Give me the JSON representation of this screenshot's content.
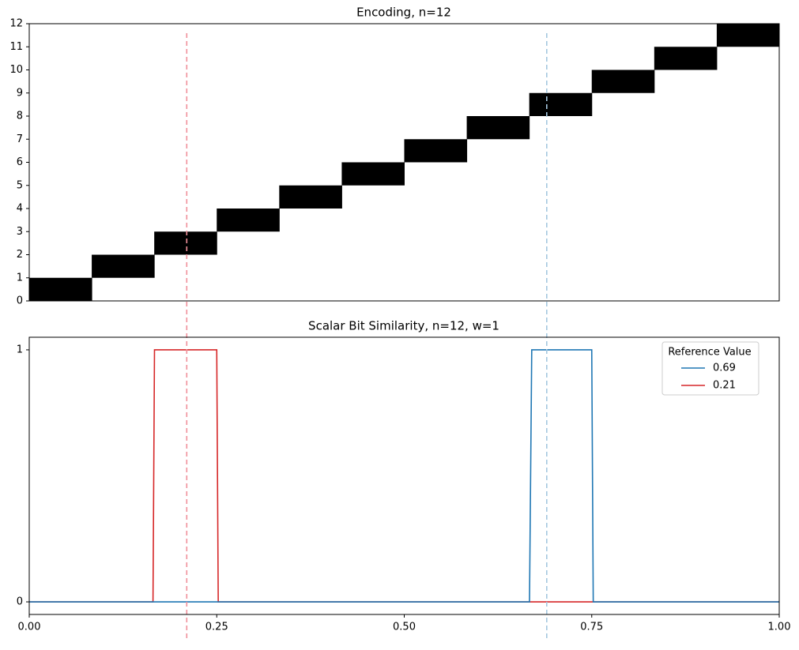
{
  "chart_data": [
    {
      "type": "heatmap",
      "title": "Encoding, n=12",
      "values": [
        0,
        1,
        2,
        3,
        4,
        5,
        6,
        7,
        8,
        9,
        10,
        11
      ],
      "color": "#000000",
      "xlim": [
        0,
        1
      ],
      "ylim": [
        0,
        12
      ],
      "yticks": [
        0,
        1,
        2,
        3,
        4,
        5,
        6,
        7,
        8,
        9,
        10,
        11,
        12
      ]
    },
    {
      "type": "line",
      "title": "Scalar Bit Similarity, n=12, w=1",
      "legend_title": "Reference Value",
      "legend": "upper right",
      "series": [
        {
          "name": "0.69",
          "color": "#1f77b4",
          "x": [
            0,
            0.667,
            0.67,
            0.75,
            0.752,
            1
          ],
          "values": [
            0,
            0,
            1,
            1,
            0,
            0
          ]
        },
        {
          "name": "0.21",
          "color": "#d62728",
          "x": [
            0,
            0.165,
            0.167,
            0.25,
            0.252,
            1
          ],
          "values": [
            0,
            0,
            1,
            1,
            0,
            0
          ]
        }
      ],
      "xlim": [
        0,
        1
      ],
      "ylim": [
        -0.05,
        1.05
      ],
      "xticks": [
        {
          "value": 0,
          "label": "0.00"
        },
        {
          "value": 0.25,
          "label": "0.25"
        },
        {
          "value": 0.5,
          "label": "0.50"
        },
        {
          "value": 0.75,
          "label": "0.75"
        },
        {
          "value": 1,
          "label": "1.00"
        }
      ],
      "yticks": [
        0,
        1
      ],
      "vlines": [
        {
          "value": 0.69,
          "color": "#a6c8e0"
        },
        {
          "value": 0.21,
          "color": "#f0909a"
        }
      ]
    }
  ]
}
